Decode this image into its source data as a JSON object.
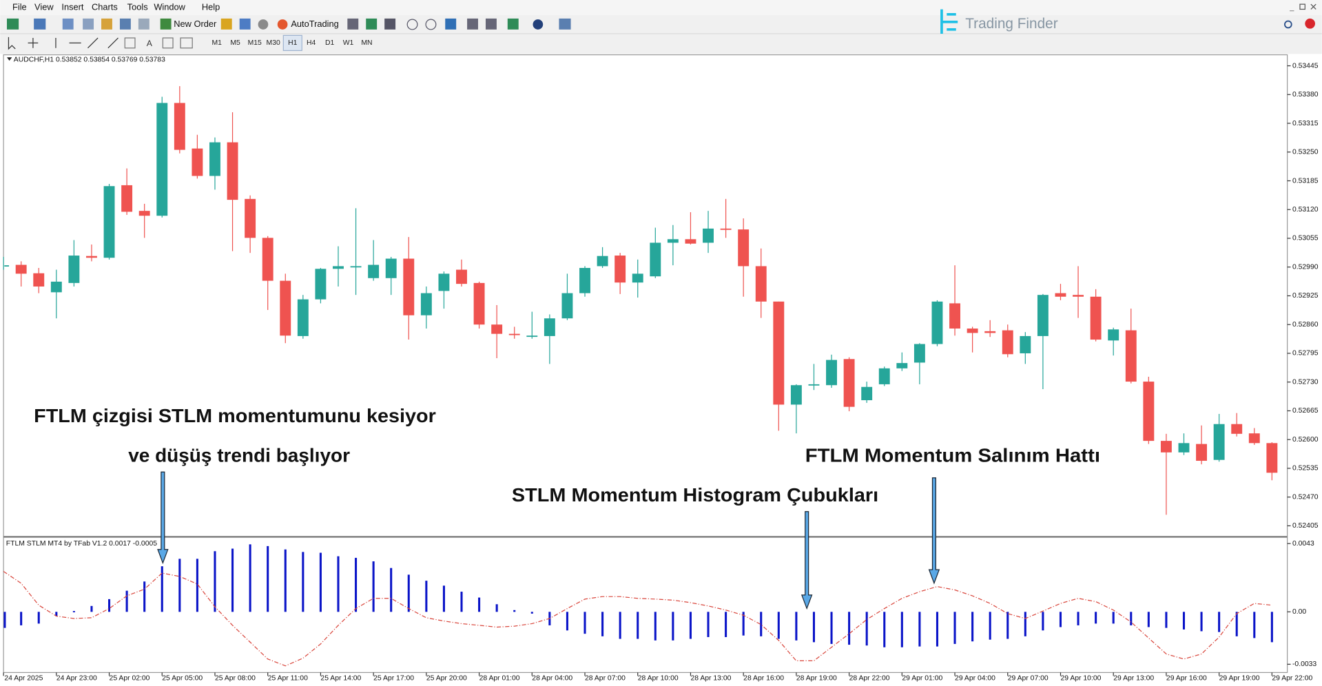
{
  "ui": {
    "menu": [
      "File",
      "View",
      "Insert",
      "Charts",
      "Tools",
      "Window",
      "Help"
    ],
    "toolbar": [
      "New Order",
      "AutoTrading"
    ],
    "timeframes": [
      "M1",
      "M5",
      "M15",
      "M30",
      "H1",
      "H4",
      "D1",
      "W1",
      "MN"
    ],
    "logo": "Trading Finder"
  },
  "annotations": [
    "FTLM çizgisi STLM momentumunu kesiyor",
    "ve düşüş trendi başlıyor",
    "STLM Momentum Histogram Çubukları",
    "FTLM Momentum Salınım Hattı"
  ],
  "chart_data": [
    {
      "type": "candlestick",
      "title": "AUDCHF,H1  0.53852 0.53854 0.53769 0.53783",
      "up_color": "#26a69a",
      "down_color": "#ef5350",
      "categories": [
        "24 Apr 2025",
        null,
        null,
        "24 Apr 23:00",
        null,
        null,
        "25 Apr 02:00",
        null,
        null,
        "25 Apr 05:00",
        null,
        null,
        "25 Apr 08:00",
        null,
        null,
        "25 Apr 11:00",
        null,
        null,
        "25 Apr 14:00",
        null,
        null,
        "25 Apr 17:00",
        null,
        null,
        "25 Apr 20:00",
        null,
        null,
        "28 Apr 01:00",
        null,
        null,
        "28 Apr 04:00",
        null,
        null,
        "28 Apr 07:00",
        null,
        null,
        "28 Apr 10:00",
        null,
        null,
        "28 Apr 13:00",
        null,
        null,
        "28 Apr 16:00",
        null,
        null,
        "28 Apr 19:00",
        null,
        null,
        "28 Apr 22:00",
        null,
        null,
        "29 Apr 01:00",
        null,
        null,
        "29 Apr 04:00",
        null,
        null,
        "29 Apr 07:00",
        null,
        null,
        "29 Apr 10:00",
        null,
        null,
        "29 Apr 13:00",
        null,
        null,
        "29 Apr 16:00",
        null,
        null,
        "29 Apr 19:00",
        null,
        null,
        "29 Apr 22:00"
      ],
      "open": [
        0.52994,
        0.52995,
        0.52976,
        0.52933,
        0.52954,
        0.53015,
        0.53011,
        0.53175,
        0.53117,
        0.53106,
        0.53361,
        0.53258,
        0.53196,
        0.53272,
        0.53144,
        0.53056,
        0.52959,
        0.52834,
        0.52917,
        0.52986,
        0.52992,
        0.52965,
        0.52965,
        0.53009,
        0.52881,
        0.52936,
        0.52984,
        0.52954,
        0.5286,
        0.52839,
        0.52835,
        0.52834,
        0.52874,
        0.52931,
        0.52992,
        0.53016,
        0.52955,
        0.52969,
        0.53045,
        0.53053,
        0.53045,
        0.53077,
        0.53075,
        0.52992,
        0.52912,
        0.52679,
        0.52723,
        0.52723,
        0.52782,
        0.52689,
        0.52725,
        0.52761,
        0.52774,
        0.52816,
        0.52908,
        0.52851,
        0.52845,
        0.52847,
        0.52795,
        0.52834,
        0.52931,
        0.52927,
        0.52923,
        0.52824,
        0.52847,
        0.52731,
        0.52597,
        0.52571,
        0.5259,
        0.52554,
        0.52635,
        0.52614,
        0.52592
      ],
      "high": [
        0.53013,
        0.53003,
        0.52988,
        0.52984,
        0.53051,
        0.53041,
        0.53178,
        0.53213,
        0.53133,
        0.53375,
        0.53399,
        0.53289,
        0.53283,
        0.5334,
        0.53152,
        0.5306,
        0.52975,
        0.52927,
        0.52988,
        0.53037,
        0.53123,
        0.53051,
        0.53013,
        0.53058,
        0.52946,
        0.5298,
        0.53007,
        0.52957,
        0.52904,
        0.52855,
        0.52889,
        0.52883,
        0.52975,
        0.52992,
        0.53035,
        0.53022,
        0.53007,
        0.53079,
        0.53085,
        0.53114,
        0.53117,
        0.53144,
        0.531,
        0.53032,
        0.52912,
        0.52725,
        0.52771,
        0.52792,
        0.52786,
        0.52731,
        0.52765,
        0.52797,
        0.52818,
        0.52915,
        0.52994,
        0.52855,
        0.5287,
        0.5286,
        0.52843,
        0.52929,
        0.52952,
        0.52992,
        0.5294,
        0.52853,
        0.52896,
        0.52742,
        0.52613,
        0.52614,
        0.52632,
        0.52658,
        0.5266,
        0.52626,
        0.52594
      ],
      "low": [
        0.52984,
        0.52946,
        0.52931,
        0.52874,
        0.52946,
        0.53003,
        0.53007,
        0.53108,
        0.53056,
        0.53102,
        0.53247,
        0.5319,
        0.53165,
        0.53026,
        0.53022,
        0.52893,
        0.52818,
        0.52828,
        0.52908,
        0.52946,
        0.52927,
        0.52959,
        0.52927,
        0.52826,
        0.52851,
        0.52896,
        0.52946,
        0.52851,
        0.52784,
        0.52828,
        0.52828,
        0.52771,
        0.5287,
        0.52923,
        0.52988,
        0.52929,
        0.52921,
        0.52965,
        0.52994,
        0.53041,
        0.53022,
        0.53056,
        0.52923,
        0.52875,
        0.5262,
        0.52614,
        0.52712,
        0.52717,
        0.52664,
        0.52683,
        0.52721,
        0.52755,
        0.52725,
        0.52811,
        0.52835,
        0.52797,
        0.52832,
        0.52786,
        0.52771,
        0.52714,
        0.52915,
        0.52875,
        0.52822,
        0.5279,
        0.52727,
        0.5259,
        0.5243,
        0.52565,
        0.52544,
        0.5255,
        0.52607,
        0.52588,
        0.52508
      ],
      "close": [
        0.52994,
        0.52975,
        0.52946,
        0.52957,
        0.53016,
        0.53011,
        0.53173,
        0.53115,
        0.53106,
        0.53361,
        0.53255,
        0.53196,
        0.53272,
        0.53142,
        0.53056,
        0.52959,
        0.52835,
        0.52917,
        0.52986,
        0.52992,
        0.52992,
        0.52995,
        0.53009,
        0.52881,
        0.52931,
        0.52975,
        0.52952,
        0.5286,
        0.52839,
        0.52837,
        0.52835,
        0.52874,
        0.52931,
        0.52988,
        0.53015,
        0.52955,
        0.52975,
        0.53045,
        0.53053,
        0.53043,
        0.53077,
        0.53075,
        0.52992,
        0.52912,
        0.52679,
        0.52723,
        0.52725,
        0.5278,
        0.52674,
        0.52719,
        0.52761,
        0.52773,
        0.52816,
        0.52912,
        0.52851,
        0.52841,
        0.52841,
        0.52793,
        0.52834,
        0.52927,
        0.52923,
        0.52923,
        0.52826,
        0.52849,
        0.52731,
        0.52597,
        0.52571,
        0.52592,
        0.52552,
        0.52635,
        0.52613,
        0.52592,
        0.52525
      ],
      "ylim": [
        0.52382,
        0.53468
      ],
      "yticks": [
        0.53445,
        {
          "value": 0.5338,
          "label": "0.53380"
        },
        0.53315,
        {
          "value": 0.5325,
          "label": "0.53250"
        },
        0.53185,
        {
          "value": 0.5312,
          "label": "0.53120"
        },
        0.53055,
        {
          "value": 0.5299,
          "label": "0.52990"
        },
        0.52925,
        {
          "value": 0.5286,
          "label": "0.52860"
        },
        0.52795,
        {
          "value": 0.5273,
          "label": "0.52730"
        },
        0.52665,
        {
          "value": 0.526,
          "label": "0.52600"
        },
        0.52535,
        {
          "value": 0.5247,
          "label": "0.52470"
        },
        0.52405
      ]
    },
    {
      "type": "bar",
      "title": "FTLM STLM MT4 by TFab V1.2 0.0017 -0.0005",
      "color": "#0a14c8",
      "values": [
        -0.00101,
        -0.00085,
        -0.00074,
        -0.00027,
        5e-05,
        0.00037,
        0.0008,
        0.00133,
        0.00191,
        0.00287,
        0.00334,
        0.00334,
        0.00382,
        0.00398,
        0.00425,
        0.00414,
        0.00393,
        0.00377,
        0.00372,
        0.0035,
        0.0034,
        0.00318,
        0.00276,
        0.00234,
        0.00196,
        0.00165,
        0.00127,
        0.0009,
        0.00048,
        0.00011,
        -0.00011,
        -0.00085,
        -0.00117,
        -0.00138,
        -0.00154,
        -0.0017,
        -0.0017,
        -0.0018,
        -0.0018,
        -0.0017,
        -0.00159,
        -0.00159,
        -0.00149,
        -0.00154,
        -0.0017,
        -0.0018,
        -0.00191,
        -0.00202,
        -0.00207,
        -0.00212,
        -0.00223,
        -0.00223,
        -0.00218,
        -0.00218,
        -0.00202,
        -0.00186,
        -0.00175,
        -0.0017,
        -0.00154,
        -0.00117,
        -0.00096,
        -0.00085,
        -0.00074,
        -0.00074,
        -0.00085,
        -0.00096,
        -0.00101,
        -0.00111,
        -0.00122,
        -0.00127,
        -0.00154,
        -0.00165,
        -0.00191
      ],
      "line": {
        "color": "#d9463c",
        "values": [
          0.00255,
          0.0018,
          0.00042,
          -0.00027,
          -0.00042,
          -0.00037,
          0.00021,
          0.00101,
          0.00143,
          0.00244,
          0.00223,
          0.00175,
          0.00032,
          -0.00085,
          -0.00191,
          -0.00297,
          -0.0034,
          -0.00292,
          -0.00202,
          -0.00085,
          0.00021,
          0.00085,
          0.00085,
          0.00021,
          -0.00037,
          -0.00058,
          -0.00074,
          -0.00085,
          -0.00096,
          -0.0009,
          -0.00074,
          -0.00042,
          0.00021,
          0.0008,
          0.00096,
          0.00096,
          0.00085,
          0.0008,
          0.00074,
          0.00058,
          0.00037,
          0.00011,
          -0.00021,
          -0.0008,
          -0.0018,
          -0.00308,
          -0.00308,
          -0.00223,
          -0.00138,
          -0.00048,
          0.00021,
          0.00085,
          0.00127,
          0.00159,
          0.00138,
          0.00101,
          0.00053,
          -0.00011,
          -0.00042,
          5e-05,
          0.00053,
          0.00085,
          0.00064,
          0.00011,
          -0.00064,
          -0.00165,
          -0.00265,
          -0.00297,
          -0.00265,
          -0.00159,
          -0.00011,
          0.00053,
          0.00042
        ]
      },
      "ylim": [
        -0.00382,
        0.00467
      ],
      "yticks": [
        0.0043,
        {
          "value": 0,
          "label": "0.00"
        },
        -0.0033
      ]
    }
  ]
}
